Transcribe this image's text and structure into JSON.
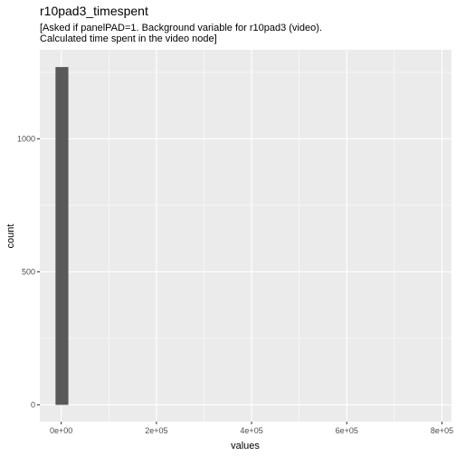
{
  "chart_data": {
    "type": "bar",
    "title": "r10pad3_timespent",
    "subtitle_lines": [
      "[Asked if panelPAD=1. Background variable for r10pad3 (video).",
      "Calculated time spent in the video node]"
    ],
    "xlabel": "values",
    "ylabel": "count",
    "x_ticks": [
      {
        "value": 0,
        "label": "0e+00"
      },
      {
        "value": 200000,
        "label": "2e+05"
      },
      {
        "value": 400000,
        "label": "4e+05"
      },
      {
        "value": 600000,
        "label": "6e+05"
      },
      {
        "value": 800000,
        "label": "8e+05"
      }
    ],
    "y_ticks": [
      {
        "value": 0,
        "label": "0"
      },
      {
        "value": 500,
        "label": "500"
      },
      {
        "value": 1000,
        "label": "1000"
      }
    ],
    "xlim": [
      -45000,
      820000
    ],
    "ylim": [
      -63,
      1335
    ],
    "bins": [
      {
        "x_start": -12000,
        "x_end": 15000,
        "count": 1270
      }
    ],
    "grid": true,
    "background": "#ebebeb",
    "grid_color": "#ffffff",
    "bar_color": "#595959"
  }
}
